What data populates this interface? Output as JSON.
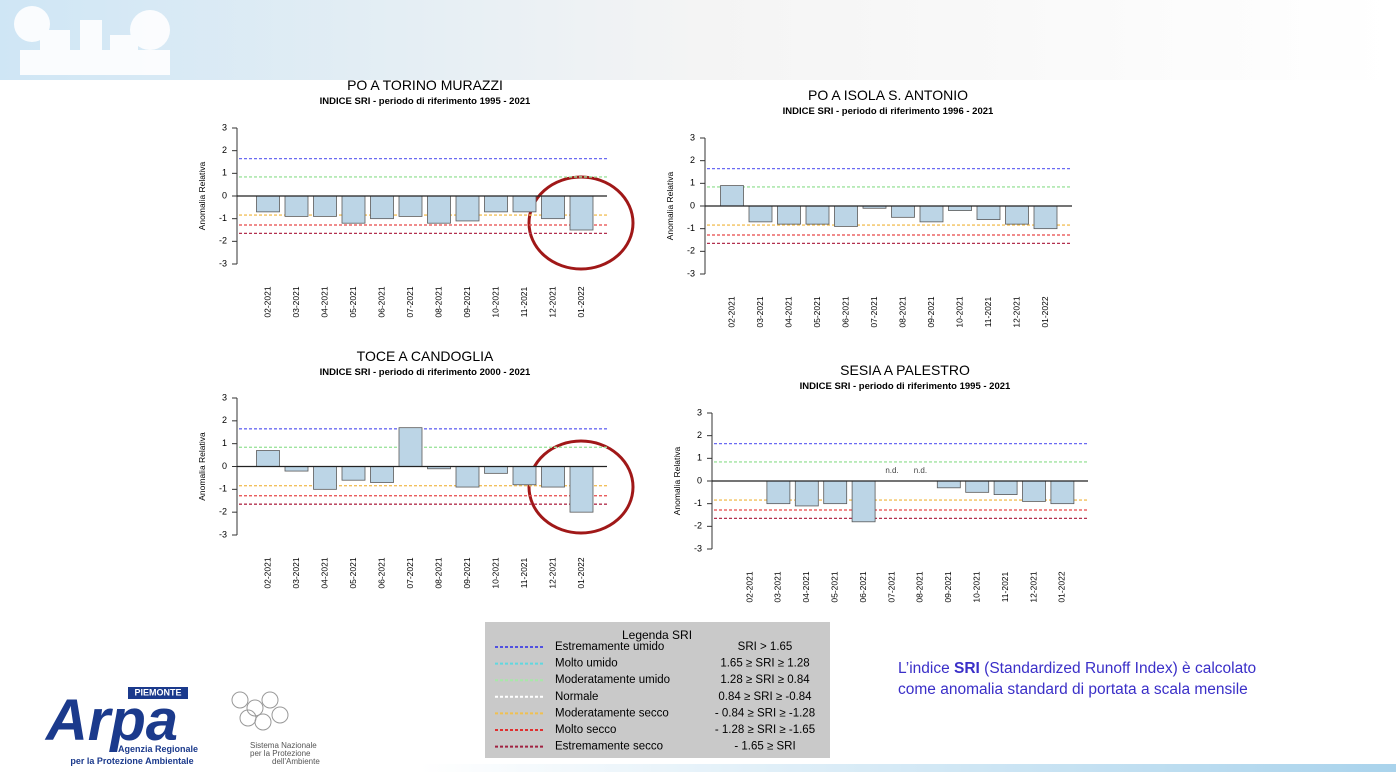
{
  "chart_data": [
    {
      "type": "bar",
      "title": "PO A TORINO MURAZZI",
      "subtitle": "INDICE SRI - periodo di riferimento 1995 - 2021",
      "y_label": "Anomalia Relativa",
      "categories": [
        "02-2021",
        "03-2021",
        "04-2021",
        "05-2021",
        "06-2021",
        "07-2021",
        "08-2021",
        "09-2021",
        "10-2021",
        "11-2021",
        "12-2021",
        "01-2022"
      ],
      "values": [
        -0.7,
        -0.9,
        -0.9,
        -1.2,
        -1.0,
        -0.9,
        -1.2,
        -1.1,
        -0.7,
        -0.7,
        -1.0,
        -1.5
      ],
      "color": "#bcd5e6",
      "ylim": [
        -3,
        3
      ],
      "yticks": [
        -3,
        -2,
        -1,
        0,
        1,
        2,
        3
      ],
      "reference_lines": [
        {
          "value": 1.65,
          "color": "#6b6bf2"
        },
        {
          "value": 0.84,
          "color": "#9fe49f"
        },
        {
          "value": -0.84,
          "color": "#f2c05c"
        },
        {
          "value": -1.28,
          "color": "#e64848"
        },
        {
          "value": -1.65,
          "color": "#b2304f"
        }
      ]
    },
    {
      "type": "bar",
      "title": "PO A ISOLA S. ANTONIO",
      "subtitle": "INDICE SRI - periodo di riferimento 1996 - 2021",
      "y_label": "Anomalia Relativa",
      "categories": [
        "02-2021",
        "03-2021",
        "04-2021",
        "05-2021",
        "06-2021",
        "07-2021",
        "08-2021",
        "09-2021",
        "10-2021",
        "11-2021",
        "12-2021",
        "01-2022"
      ],
      "values": [
        0.9,
        -0.7,
        -0.8,
        -0.8,
        -0.9,
        -0.1,
        -0.5,
        -0.7,
        -0.2,
        -0.6,
        -0.8,
        -1.0
      ],
      "color": "#bcd5e6",
      "ylim": [
        -3,
        3
      ],
      "yticks": [
        -3,
        -2,
        -1,
        0,
        1,
        2,
        3
      ],
      "reference_lines": [
        {
          "value": 1.65,
          "color": "#6b6bf2"
        },
        {
          "value": 0.84,
          "color": "#9fe49f"
        },
        {
          "value": -0.84,
          "color": "#f2c05c"
        },
        {
          "value": -1.28,
          "color": "#e64848"
        },
        {
          "value": -1.65,
          "color": "#b2304f"
        }
      ]
    },
    {
      "type": "bar",
      "title": "TOCE A CANDOGLIA",
      "subtitle": "INDICE SRI - periodo di riferimento 2000 - 2021",
      "y_label": "Anomalia Relativa",
      "categories": [
        "02-2021",
        "03-2021",
        "04-2021",
        "05-2021",
        "06-2021",
        "07-2021",
        "08-2021",
        "09-2021",
        "10-2021",
        "11-2021",
        "12-2021",
        "01-2022"
      ],
      "values": [
        0.7,
        -0.2,
        -1.0,
        -0.6,
        -0.7,
        1.7,
        -0.1,
        -0.9,
        -0.3,
        -0.8,
        -0.9,
        -2.0
      ],
      "color": "#bcd5e6",
      "ylim": [
        -3,
        3
      ],
      "yticks": [
        -3,
        -2,
        -1,
        0,
        1,
        2,
        3
      ],
      "reference_lines": [
        {
          "value": 1.65,
          "color": "#6b6bf2"
        },
        {
          "value": 0.84,
          "color": "#9fe49f"
        },
        {
          "value": -0.84,
          "color": "#f2c05c"
        },
        {
          "value": -1.28,
          "color": "#e64848"
        },
        {
          "value": -1.65,
          "color": "#b2304f"
        }
      ]
    },
    {
      "type": "bar",
      "title": "SESIA A PALESTRO",
      "subtitle": "INDICE SRI - periodo di riferimento 1995 - 2021",
      "y_label": "Anomalia Relativa",
      "categories": [
        "02-2021",
        "03-2021",
        "04-2021",
        "05-2021",
        "06-2021",
        "07-2021",
        "08-2021",
        "09-2021",
        "10-2021",
        "11-2021",
        "12-2021",
        "01-2022"
      ],
      "values": [
        null,
        -1.0,
        -1.1,
        -1.0,
        -1.8,
        null,
        null,
        -0.3,
        -0.5,
        -0.6,
        -0.9,
        -1.0
      ],
      "value_labels": [
        null,
        null,
        null,
        null,
        null,
        "n.d.",
        "n.d.",
        null,
        null,
        null,
        null,
        null
      ],
      "color": "#bcd5e6",
      "ylim": [
        -3,
        3
      ],
      "yticks": [
        -3,
        -2,
        -1,
        0,
        1,
        2,
        3
      ],
      "reference_lines": [
        {
          "value": 1.65,
          "color": "#6b6bf2"
        },
        {
          "value": 0.84,
          "color": "#9fe49f"
        },
        {
          "value": -0.84,
          "color": "#f2c05c"
        },
        {
          "value": -1.28,
          "color": "#e64848"
        },
        {
          "value": -1.65,
          "color": "#b2304f"
        }
      ]
    }
  ],
  "legend_table": {
    "title": "Legenda SRI",
    "rows": [
      {
        "name": "Estremamente umido",
        "condition": "SRI > 1.65",
        "color": "#5050e0"
      },
      {
        "name": "Molto umido",
        "condition": "1.65 ≥ SRI ≥ 1.28",
        "color": "#60d8e0"
      },
      {
        "name": "Moderatamente umido",
        "condition": "1.28 ≥ SRI ≥ 0.84",
        "color": "#a8e8a8"
      },
      {
        "name": "Normale",
        "condition": "0.84 ≥ SRI ≥ -0.84",
        "color": "#ffffff"
      },
      {
        "name": "Moderatamente secco",
        "condition": "- 0.84 ≥ SRI ≥ -1.28",
        "color": "#f0c050"
      },
      {
        "name": "Molto secco",
        "condition": "- 1.28 ≥ SRI ≥ -1.65",
        "color": "#e03030"
      },
      {
        "name": "Estremamente secco",
        "condition": "- 1.65 ≥ SRI",
        "color": "#a02040"
      }
    ]
  },
  "note": [
    "L’indice ",
    "SRI",
    " (Standardized Runoff Index) è calcolato come anomalia standard di portata a scala mensile"
  ],
  "logos": {
    "region": "PIEMONTE",
    "brand": "Arpa",
    "agency": [
      "Agenzia Regionale",
      "per la Protezione Ambientale"
    ],
    "network": [
      "Sistema Nazionale",
      "per la Protezione",
      "dell'Ambiente"
    ]
  }
}
